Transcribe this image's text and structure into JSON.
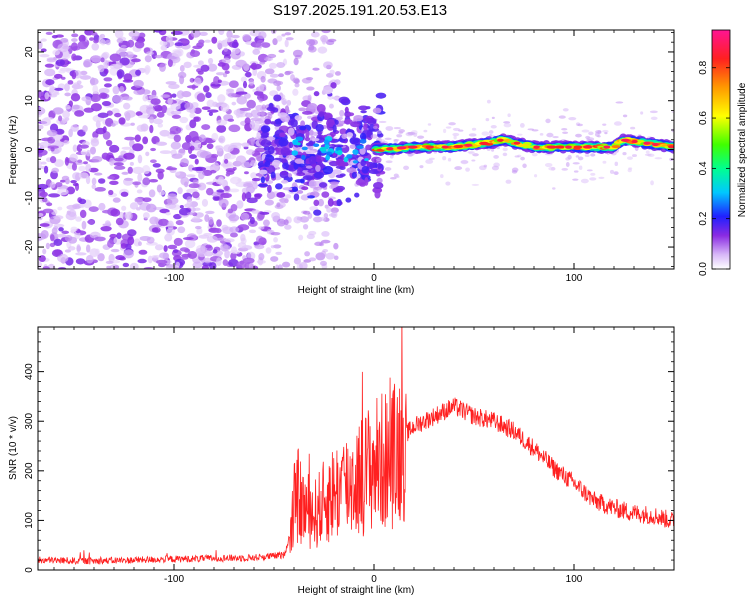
{
  "title": "S197.2025.191.20.53.E13",
  "chart_data": [
    {
      "type": "heatmap",
      "xlabel": "Height of straight line (km)",
      "ylabel": "Frequency (Hz)",
      "xlim": [
        -168,
        150
      ],
      "ylim": [
        -24.5,
        24.5
      ],
      "xticks": [
        -100,
        0,
        100
      ],
      "yticks": [
        -20,
        -10,
        0,
        10,
        20
      ],
      "colorbar": {
        "label": "Normalized spectral amplitude",
        "range": [
          0,
          0.95
        ],
        "ticks": [
          0.0,
          0.2,
          0.4,
          0.6,
          0.8
        ],
        "colors": [
          "#ffffff",
          "#c9a8f0",
          "#8a2be2",
          "#3030ff",
          "#00c8ff",
          "#00ff80",
          "#40ff00",
          "#ffff00",
          "#ff9900",
          "#ff2020",
          "#ff00aa"
        ]
      },
      "ridge": {
        "description_points_x": [
          2,
          20,
          40,
          60,
          64,
          80,
          100,
          120,
          124,
          150
        ],
        "frequency_hz": [
          0.0,
          0.5,
          0.5,
          1.5,
          2.0,
          0.5,
          0.5,
          0.5,
          2.0,
          0.5
        ],
        "peak_amplitude": 0.85
      }
    },
    {
      "type": "line",
      "xlabel": "Height of straight line (km)",
      "ylabel": "SNR (10 * v/v)",
      "xlim": [
        -168,
        150
      ],
      "ylim": [
        0,
        490
      ],
      "xticks": [
        -100,
        0,
        100
      ],
      "yticks": [
        0,
        100,
        200,
        300,
        400
      ],
      "series_color": "#ff2020",
      "series": [
        {
          "x": [
            -168,
            -140,
            -100,
            -60,
            -45,
            -42,
            -40,
            -38,
            -36,
            -30,
            -22,
            -15,
            -10,
            -5,
            0,
            5,
            10,
            15,
            20,
            30,
            40,
            50,
            60,
            70,
            80,
            90,
            100,
            110,
            120,
            130,
            140,
            150
          ],
          "y": [
            20,
            18,
            22,
            25,
            30,
            70,
            130,
            150,
            130,
            110,
            150,
            170,
            180,
            195,
            215,
            220,
            230,
            270,
            290,
            310,
            330,
            310,
            300,
            280,
            245,
            205,
            175,
            140,
            125,
            115,
            110,
            98
          ]
        }
      ]
    }
  ]
}
